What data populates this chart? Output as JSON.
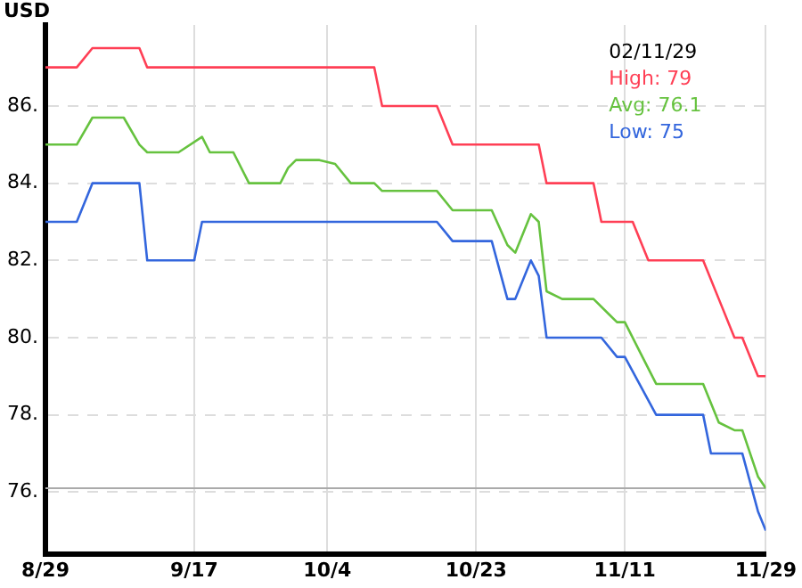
{
  "chart_data": {
    "type": "line",
    "ylabel": "USD",
    "annotations": [
      "02/11/29"
    ],
    "xlim": [
      "--08-29",
      "--11-29"
    ],
    "xticks": [
      {
        "value": "--08-29",
        "label": "8/29"
      },
      {
        "value": "--09-17",
        "label": "9/17"
      },
      {
        "value": "--10-04",
        "label": "10/4"
      },
      {
        "value": "--10-23",
        "label": "10/23"
      },
      {
        "value": "--11-11",
        "label": "11/11"
      },
      {
        "value": "--11-29",
        "label": "11/29"
      }
    ],
    "ylim": [
      74.4,
      88.1
    ],
    "yticks": [
      {
        "value": 76,
        "label": "76."
      },
      {
        "value": 78,
        "label": "78."
      },
      {
        "value": 80,
        "label": "80."
      },
      {
        "value": 82,
        "label": "82."
      },
      {
        "value": 84,
        "label": "84."
      },
      {
        "value": 86,
        "label": "86."
      }
    ],
    "grid": true,
    "legend": "top right",
    "ref_lines": [
      {
        "axis": "y",
        "value": 76.1,
        "color": "#aaaaaa"
      }
    ],
    "series": [
      {
        "name": "High: 79",
        "color": "#ff3f55",
        "x": [
          "--08-29",
          "--09-02",
          "--09-04",
          "--09-10",
          "--09-11",
          "--10-10",
          "--10-11",
          "--10-18",
          "--10-20",
          "--10-31",
          "--11-01",
          "--11-07",
          "--11-08",
          "--11-12",
          "--11-14",
          "--11-21",
          "--11-23",
          "--11-25",
          "--11-26",
          "--11-28",
          "--11-29"
        ],
        "values": [
          87,
          87,
          87.5,
          87.5,
          87,
          87,
          86,
          86,
          85,
          85,
          84,
          84,
          83,
          83,
          82,
          82,
          81,
          80,
          80,
          79,
          79
        ]
      },
      {
        "name": "Avg: 76.1",
        "color": "#66c23f",
        "x": [
          "--08-29",
          "--09-02",
          "--09-04",
          "--09-08",
          "--09-10",
          "--09-11",
          "--09-15",
          "--09-18",
          "--09-19",
          "--09-22",
          "--09-24",
          "--09-28",
          "--09-29",
          "--09-30",
          "--10-03",
          "--10-05",
          "--10-07",
          "--10-10",
          "--10-11",
          "--10-18",
          "--10-20",
          "--10-25",
          "--10-27",
          "--10-28",
          "--10-30",
          "--10-31",
          "--11-01",
          "--11-03",
          "--11-07",
          "--11-09",
          "--11-10",
          "--11-11",
          "--11-13",
          "--11-15",
          "--11-21",
          "--11-23",
          "--11-25",
          "--11-26",
          "--11-28",
          "--11-29"
        ],
        "values": [
          85,
          85,
          85.7,
          85.7,
          85,
          84.8,
          84.8,
          85.2,
          84.8,
          84.8,
          84,
          84,
          84.4,
          84.6,
          84.6,
          84.5,
          84,
          84,
          83.8,
          83.8,
          83.3,
          83.3,
          82.4,
          82.2,
          83.2,
          83,
          81.2,
          81,
          81,
          80.6,
          80.4,
          80.4,
          79.6,
          78.8,
          78.8,
          77.8,
          77.6,
          77.6,
          76.4,
          76.1
        ]
      },
      {
        "name": "Low: 75",
        "color": "#3366dd",
        "x": [
          "--08-29",
          "--09-02",
          "--09-04",
          "--09-10",
          "--09-11",
          "--09-17",
          "--09-18",
          "--10-18",
          "--10-20",
          "--10-25",
          "--10-27",
          "--10-28",
          "--10-30",
          "--10-31",
          "--11-01",
          "--11-08",
          "--11-10",
          "--11-11",
          "--11-15",
          "--11-21",
          "--11-22",
          "--11-26",
          "--11-28",
          "--11-29"
        ],
        "values": [
          83,
          83,
          84,
          84,
          82,
          82,
          83,
          83,
          82.5,
          82.5,
          81,
          81,
          82,
          81.6,
          80,
          80,
          79.5,
          79.5,
          78,
          78,
          77,
          77,
          75.5,
          75
        ]
      }
    ]
  }
}
